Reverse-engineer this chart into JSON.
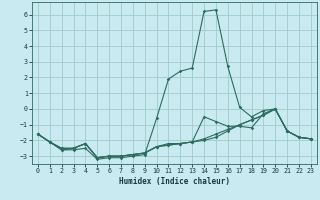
{
  "xlabel": "Humidex (Indice chaleur)",
  "bg_color": "#c8eaf0",
  "grid_color": "#a0ccc8",
  "line_color": "#2d6b5e",
  "xlim": [
    -0.5,
    23.5
  ],
  "ylim": [
    -3.5,
    6.8
  ],
  "yticks": [
    -3,
    -2,
    -1,
    0,
    1,
    2,
    3,
    4,
    5,
    6
  ],
  "xticks": [
    0,
    1,
    2,
    3,
    4,
    5,
    6,
    7,
    8,
    9,
    10,
    11,
    12,
    13,
    14,
    15,
    16,
    17,
    18,
    19,
    20,
    21,
    22,
    23
  ],
  "lines": [
    {
      "x": [
        0,
        1,
        2,
        3,
        4,
        5,
        6,
        7,
        8,
        9,
        10,
        11,
        12,
        13,
        14,
        15,
        16,
        17,
        18,
        19,
        20,
        21,
        22,
        23
      ],
      "y": [
        -1.6,
        -2.1,
        -2.6,
        -2.6,
        -2.5,
        -3.2,
        -3.1,
        -3.1,
        -3.0,
        -2.9,
        -0.6,
        1.9,
        2.4,
        2.6,
        6.2,
        6.3,
        2.7,
        0.1,
        -0.5,
        -0.1,
        0.0,
        -1.4,
        -1.8,
        -1.9
      ]
    },
    {
      "x": [
        0,
        1,
        2,
        3,
        4,
        5,
        6,
        7,
        8,
        9,
        10,
        11,
        12,
        13,
        14,
        15,
        16,
        17,
        18,
        19,
        20,
        21,
        22,
        23
      ],
      "y": [
        -1.6,
        -2.1,
        -2.6,
        -2.5,
        -2.2,
        -3.1,
        -3.0,
        -3.0,
        -2.9,
        -2.8,
        -2.4,
        -2.2,
        -2.2,
        -2.1,
        -1.9,
        -1.6,
        -1.3,
        -1.0,
        -0.7,
        -0.4,
        0.0,
        -1.4,
        -1.8,
        -1.9
      ]
    },
    {
      "x": [
        0,
        1,
        2,
        3,
        4,
        5,
        6,
        7,
        8,
        9,
        10,
        11,
        12,
        13,
        14,
        15,
        16,
        17,
        18,
        19,
        20,
        21,
        22,
        23
      ],
      "y": [
        -1.6,
        -2.1,
        -2.5,
        -2.5,
        -2.2,
        -3.1,
        -3.0,
        -3.0,
        -2.9,
        -2.8,
        -2.4,
        -2.3,
        -2.2,
        -2.1,
        -0.5,
        -0.8,
        -1.1,
        -1.1,
        -1.2,
        -0.3,
        0.0,
        -1.4,
        -1.8,
        -1.9
      ]
    },
    {
      "x": [
        0,
        1,
        2,
        3,
        4,
        5,
        6,
        7,
        8,
        9,
        10,
        11,
        12,
        13,
        14,
        15,
        16,
        17,
        18,
        19,
        20,
        21,
        22,
        23
      ],
      "y": [
        -1.6,
        -2.1,
        -2.5,
        -2.5,
        -2.2,
        -3.1,
        -3.0,
        -3.0,
        -2.9,
        -2.8,
        -2.4,
        -2.3,
        -2.2,
        -2.1,
        -2.0,
        -1.8,
        -1.4,
        -1.0,
        -0.7,
        -0.4,
        0.0,
        -1.4,
        -1.8,
        -1.9
      ]
    }
  ]
}
